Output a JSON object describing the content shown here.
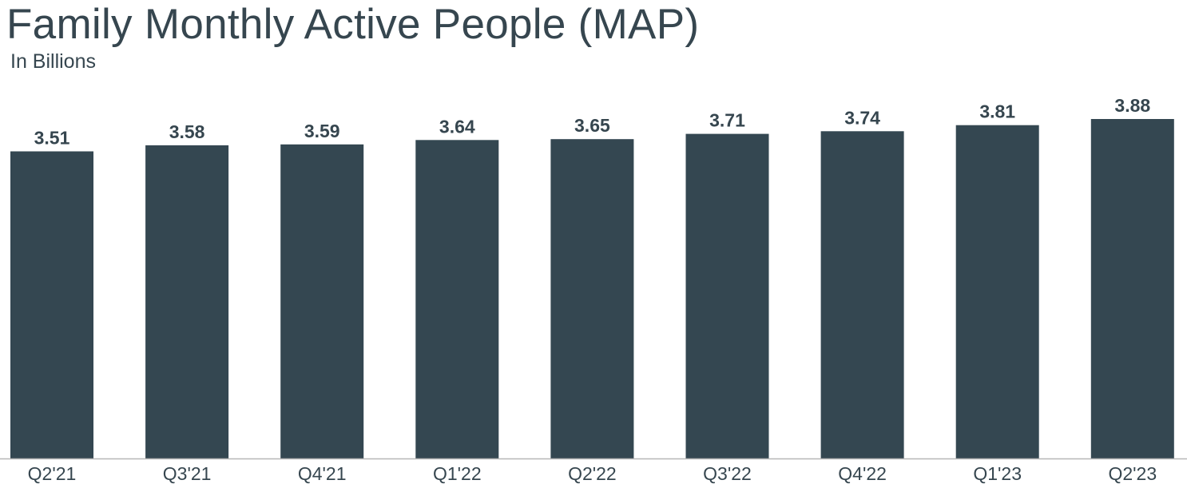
{
  "chart_data": {
    "type": "bar",
    "title": "Family Monthly Active People (MAP)",
    "subtitle": "In Billions",
    "categories": [
      "Q2'21",
      "Q3'21",
      "Q4'21",
      "Q1'22",
      "Q2'22",
      "Q3'22",
      "Q4'22",
      "Q1'23",
      "Q2'23"
    ],
    "values": [
      3.51,
      3.58,
      3.59,
      3.64,
      3.65,
      3.71,
      3.74,
      3.81,
      3.88
    ],
    "value_labels": [
      "3.51",
      "3.58",
      "3.59",
      "3.64",
      "3.65",
      "3.71",
      "3.74",
      "3.81",
      "3.88"
    ],
    "xlabel": "",
    "ylabel": "",
    "grid": false,
    "legend": "none",
    "colors": {
      "bar": "#344751",
      "text": "#36464f",
      "axis": "#b7b7b7"
    }
  }
}
